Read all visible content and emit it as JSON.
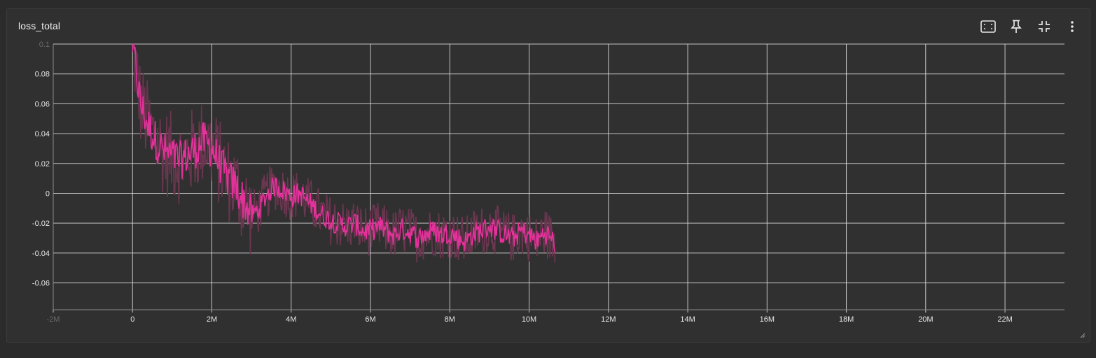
{
  "card": {
    "title": "loss_total",
    "toolbar": [
      {
        "name": "fit-domain-button",
        "icon": "fit-to-data-icon"
      },
      {
        "name": "pin-button",
        "icon": "pin-icon"
      },
      {
        "name": "collapse-button",
        "icon": "collapse-icon"
      },
      {
        "name": "more-menu-button",
        "icon": "more-vertical-icon"
      }
    ]
  },
  "chart_data": {
    "type": "line",
    "title": "",
    "xlabel": "",
    "ylabel": "",
    "xlim": [
      -2000000,
      23500000
    ],
    "ylim": [
      -0.078,
      0.1
    ],
    "x_ticks": [
      -2000000,
      0,
      2000000,
      4000000,
      6000000,
      8000000,
      10000000,
      12000000,
      14000000,
      16000000,
      18000000,
      20000000,
      22000000
    ],
    "x_tick_labels": [
      "-2M",
      "0",
      "2M",
      "4M",
      "6M",
      "8M",
      "10M",
      "12M",
      "14M",
      "16M",
      "18M",
      "20M",
      "22M"
    ],
    "y_ticks": [
      -0.06,
      -0.04,
      -0.02,
      0,
      0.02,
      0.04,
      0.06,
      0.08,
      0.1
    ],
    "y_tick_labels": [
      "-0.06",
      "-0.04",
      "-0.02",
      "0",
      "0.02",
      "0.04",
      "0.06",
      "0.08",
      "0.1"
    ],
    "grid": true,
    "colors": {
      "smoothed": "#e5319b",
      "raw": "#6b3650",
      "grid": "#dcdcdc",
      "axis": "#8a8a8a"
    },
    "series": [
      {
        "x": [
          0,
          200000,
          400000,
          600000,
          800000,
          1000000,
          1200000,
          1400000,
          1600000,
          1800000,
          2000000,
          2200000,
          2400000,
          2600000,
          2800000,
          3000000,
          3200000,
          3400000,
          3600000,
          3800000,
          4000000,
          4200000,
          4400000,
          4600000,
          4800000,
          5000000,
          5200000,
          5400000,
          5600000,
          5800000,
          6000000,
          6200000,
          6400000,
          6600000,
          6800000,
          7000000,
          7200000,
          7400000,
          7600000,
          7800000,
          8000000,
          8200000,
          8400000,
          8600000,
          8800000,
          9000000,
          9200000,
          9400000,
          9600000,
          9800000,
          10000000,
          10200000,
          10400000,
          10650000
        ],
        "values": [
          0.1,
          0.06,
          0.045,
          0.035,
          0.028,
          0.025,
          0.022,
          0.026,
          0.03,
          0.035,
          0.03,
          0.02,
          0.01,
          0.005,
          -0.005,
          -0.015,
          -0.01,
          0.0,
          0.005,
          0.002,
          -0.002,
          0.0,
          -0.005,
          -0.01,
          -0.015,
          -0.018,
          -0.02,
          -0.022,
          -0.02,
          -0.025,
          -0.025,
          -0.022,
          -0.025,
          -0.028,
          -0.024,
          -0.026,
          -0.03,
          -0.027,
          -0.025,
          -0.028,
          -0.026,
          -0.03,
          -0.032,
          -0.027,
          -0.025,
          -0.022,
          -0.025,
          -0.028,
          -0.03,
          -0.025,
          -0.028,
          -0.032,
          -0.026,
          -0.033
        ]
      }
    ]
  }
}
